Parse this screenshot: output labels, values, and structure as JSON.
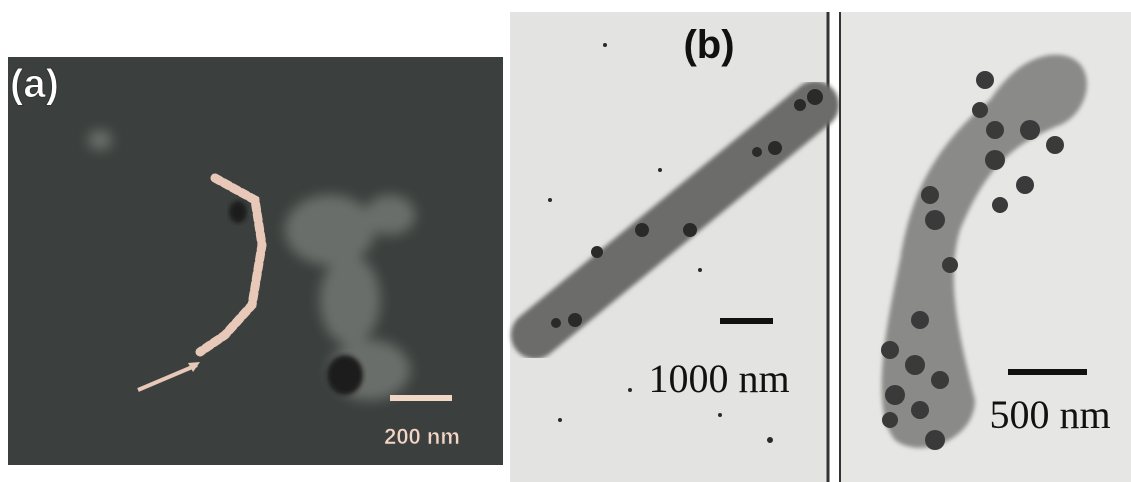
{
  "panels": [
    {
      "label": "(a)",
      "scale_label": "200 nm"
    },
    {
      "label": "(b)",
      "scale_labels": [
        "1000 nm",
        "500 nm"
      ]
    }
  ]
}
